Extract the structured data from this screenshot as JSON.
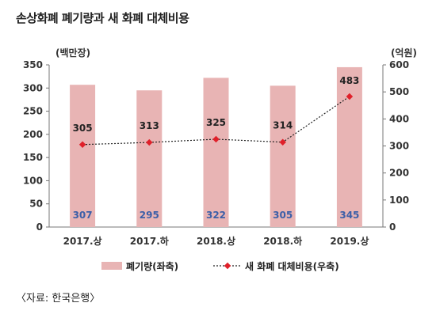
{
  "title": "손상화폐 폐기량과 새 화폐 대체비용",
  "source": "〈자료: 한국은행〉",
  "chart_data": {
    "type": "bar",
    "categories": [
      "2017.상",
      "2017.하",
      "2018.상",
      "2018.하",
      "2019.상"
    ],
    "series": [
      {
        "name": "폐기량(좌축)",
        "type": "bar",
        "axis": "left",
        "values": [
          307,
          295,
          322,
          305,
          345
        ],
        "color": "#e8b4b4"
      },
      {
        "name": "새 화폐 대체비용(우축)",
        "type": "line",
        "axis": "right",
        "values": [
          305,
          313,
          325,
          314,
          483
        ],
        "color": "#e0202a"
      }
    ],
    "left_axis": {
      "unit": "(백만장)",
      "ylim": [
        0,
        350
      ],
      "ticks": [
        0,
        50,
        100,
        150,
        200,
        250,
        300,
        350
      ]
    },
    "right_axis": {
      "unit": "(억원)",
      "ylim": [
        0,
        600
      ],
      "ticks": [
        0,
        100,
        200,
        300,
        400,
        500,
        600
      ]
    },
    "grid": false,
    "legend": "bottom"
  }
}
